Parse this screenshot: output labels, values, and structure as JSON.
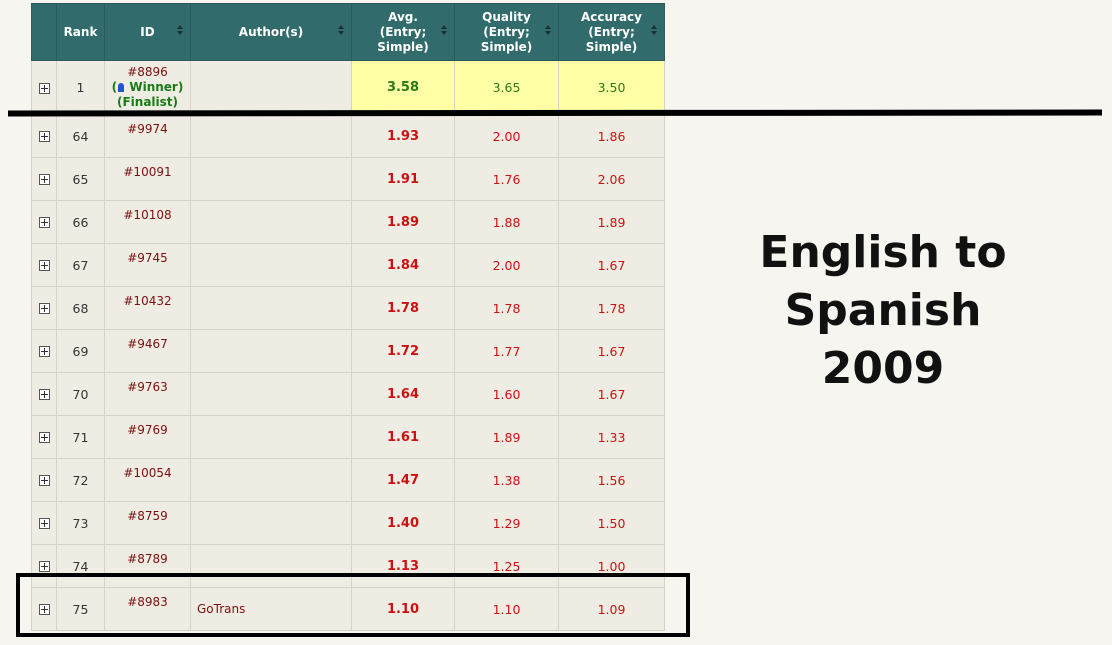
{
  "headers": {
    "rank": "Rank",
    "id": "ID",
    "authors": "Author(s)",
    "avg": [
      "Avg.",
      "(Entry;",
      "Simple)"
    ],
    "quality": [
      "Quality",
      "(Entry;",
      "Simple)"
    ],
    "accuracy": [
      "Accuracy",
      "(Entry;",
      "Simple)"
    ]
  },
  "top_row": {
    "rank": "1",
    "id": "#8896",
    "winner": "Winner)",
    "winner_open": "(",
    "finalist": "(Finalist)",
    "author": "",
    "avg": "3.58",
    "quality": "3.65",
    "accuracy": "3.50"
  },
  "rows": [
    {
      "rank": "64",
      "id": "#9974",
      "author": "",
      "avg": "1.93",
      "quality": "2.00",
      "accuracy": "1.86"
    },
    {
      "rank": "65",
      "id": "#10091",
      "author": "",
      "avg": "1.91",
      "quality": "1.76",
      "accuracy": "2.06"
    },
    {
      "rank": "66",
      "id": "#10108",
      "author": "",
      "avg": "1.89",
      "quality": "1.88",
      "accuracy": "1.89"
    },
    {
      "rank": "67",
      "id": "#9745",
      "author": "",
      "avg": "1.84",
      "quality": "2.00",
      "accuracy": "1.67"
    },
    {
      "rank": "68",
      "id": "#10432",
      "author": "",
      "avg": "1.78",
      "quality": "1.78",
      "accuracy": "1.78"
    },
    {
      "rank": "69",
      "id": "#9467",
      "author": "",
      "avg": "1.72",
      "quality": "1.77",
      "accuracy": "1.67"
    },
    {
      "rank": "70",
      "id": "#9763",
      "author": "",
      "avg": "1.64",
      "quality": "1.60",
      "accuracy": "1.67"
    },
    {
      "rank": "71",
      "id": "#9769",
      "author": "",
      "avg": "1.61",
      "quality": "1.89",
      "accuracy": "1.33"
    },
    {
      "rank": "72",
      "id": "#10054",
      "author": "",
      "avg": "1.47",
      "quality": "1.38",
      "accuracy": "1.56"
    },
    {
      "rank": "73",
      "id": "#8759",
      "author": "",
      "avg": "1.40",
      "quality": "1.29",
      "accuracy": "1.50"
    },
    {
      "rank": "74",
      "id": "#8789",
      "author": "",
      "avg": "1.13",
      "quality": "1.25",
      "accuracy": "1.00"
    },
    {
      "rank": "75",
      "id": "#8983",
      "author": "GoTrans",
      "avg": "1.10",
      "quality": "1.10",
      "accuracy": "1.09"
    }
  ],
  "caption": {
    "line1": "English to Spanish",
    "line2": "2009"
  },
  "colors": {
    "header_bg": "#326b6b",
    "highlight_bg": "#ffffa6",
    "score_red": "#cc1111",
    "score_green": "#2a7a1a",
    "link": "#7a1010"
  }
}
